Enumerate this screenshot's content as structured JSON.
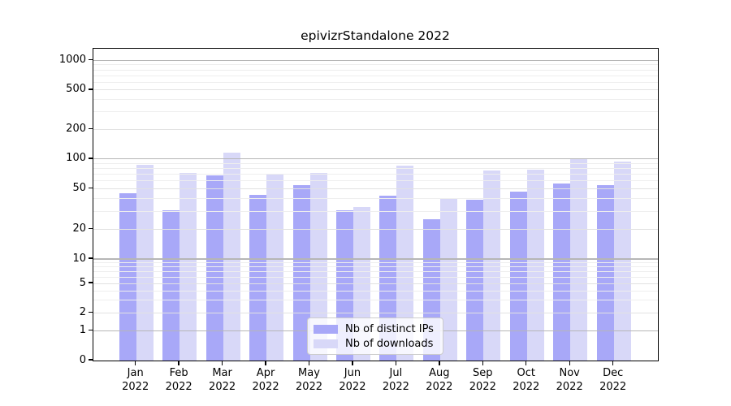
{
  "chart_data": {
    "type": "bar",
    "title": "epivizrStandalone 2022",
    "categories": [
      "Jan 2022",
      "Feb 2022",
      "Mar 2022",
      "Apr 2022",
      "May 2022",
      "Jun 2022",
      "Jul 2022",
      "Aug 2022",
      "Sep 2022",
      "Oct 2022",
      "Nov 2022",
      "Dec 2022"
    ],
    "series": [
      {
        "name": "Nb of distinct IPs",
        "color": "#a8a8f8",
        "values": [
          45,
          31,
          68,
          44,
          55,
          31,
          43,
          25,
          39,
          47,
          57,
          54
        ]
      },
      {
        "name": "Nb of downloads",
        "color": "#d8d8f8",
        "values": [
          87,
          73,
          117,
          70,
          72,
          33,
          85,
          40,
          76,
          78,
          99,
          94
        ]
      }
    ],
    "xlabel": "",
    "ylabel": "",
    "y_ticks": [
      0,
      1,
      2,
      5,
      10,
      20,
      50,
      100,
      200,
      500,
      1000
    ],
    "y_scale": "log-like",
    "ylim": [
      0,
      1200
    ],
    "grid": true,
    "legend_position": "lower center"
  },
  "colors": {
    "background": "#ffffff",
    "axis": "#000000",
    "decade_gridline": "#b6b6b6",
    "labeled_gridline": "#e2e2e2",
    "minor_gridline": "#eeeeee",
    "legend_border": "#cccccc",
    "text": "#000000"
  }
}
